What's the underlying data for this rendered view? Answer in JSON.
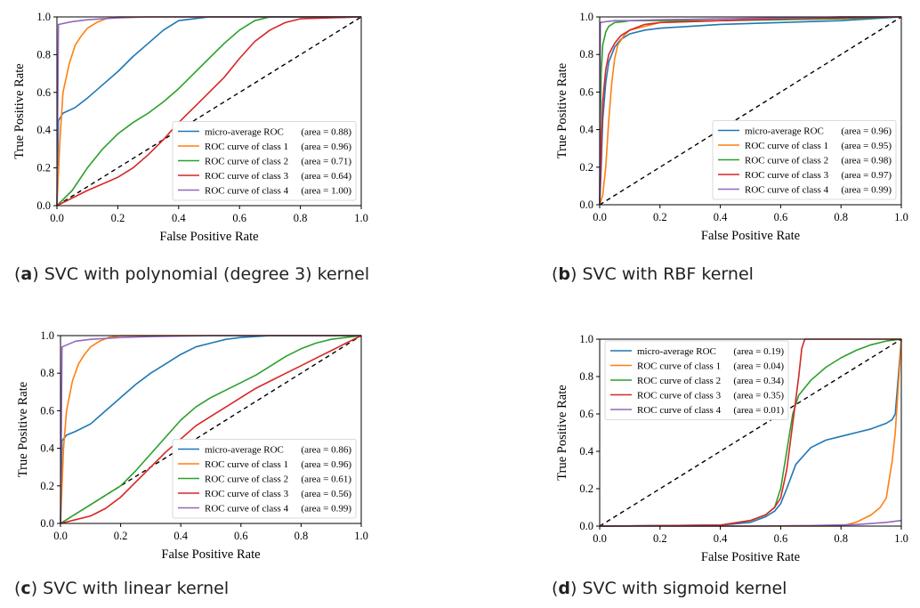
{
  "colors": {
    "micro": "#1f77b4",
    "class1": "#ff7f0e",
    "class2": "#2ca02c",
    "class3": "#d62728",
    "class4": "#9467bd",
    "diagonal": "#000000"
  },
  "chart_data": [
    {
      "type": "line",
      "caption_letter": "a",
      "caption_text": "SVC with polynomial (degree 3) kernel",
      "xlabel": "False Positive Rate",
      "ylabel": "True Positive Rate",
      "xlim": [
        0,
        1
      ],
      "ylim": [
        0,
        1
      ],
      "ticks": [
        "0.0",
        "0.2",
        "0.4",
        "0.6",
        "0.8",
        "1.0"
      ],
      "legend_position": "lower-right",
      "series": [
        {
          "name": "micro-average ROC",
          "area": "(area = 0.88)",
          "x": [
            0,
            0.005,
            0.02,
            0.06,
            0.1,
            0.15,
            0.2,
            0.25,
            0.3,
            0.35,
            0.4,
            0.45,
            0.5,
            0.6,
            1.0
          ],
          "y": [
            0,
            0.45,
            0.49,
            0.52,
            0.57,
            0.64,
            0.71,
            0.79,
            0.86,
            0.93,
            0.98,
            0.99,
            1.0,
            1.0,
            1.0
          ]
        },
        {
          "name": "ROC curve of class 1",
          "area": "(area = 0.96)",
          "x": [
            0,
            0.01,
            0.02,
            0.04,
            0.06,
            0.08,
            0.1,
            0.13,
            0.16,
            0.2,
            0.3,
            1.0
          ],
          "y": [
            0,
            0.35,
            0.6,
            0.75,
            0.85,
            0.9,
            0.94,
            0.97,
            0.99,
            1.0,
            1.0,
            1.0
          ]
        },
        {
          "name": "ROC curve of class 2",
          "area": "(area = 0.71)",
          "x": [
            0,
            0.05,
            0.1,
            0.15,
            0.2,
            0.25,
            0.3,
            0.35,
            0.4,
            0.45,
            0.5,
            0.55,
            0.6,
            0.65,
            0.7,
            1.0
          ],
          "y": [
            0,
            0.08,
            0.2,
            0.3,
            0.38,
            0.44,
            0.49,
            0.55,
            0.62,
            0.7,
            0.78,
            0.86,
            0.93,
            0.98,
            1.0,
            1.0
          ]
        },
        {
          "name": "ROC curve of class 3",
          "area": "(area = 0.64)",
          "x": [
            0,
            0.1,
            0.2,
            0.25,
            0.3,
            0.35,
            0.4,
            0.45,
            0.5,
            0.55,
            0.6,
            0.65,
            0.7,
            0.75,
            0.8,
            1.0
          ],
          "y": [
            0,
            0.08,
            0.15,
            0.2,
            0.27,
            0.35,
            0.44,
            0.52,
            0.6,
            0.68,
            0.78,
            0.87,
            0.93,
            0.97,
            0.99,
            1.0
          ]
        },
        {
          "name": "ROC curve of class 4",
          "area": "(area = 1.00)",
          "x": [
            0,
            0.005,
            0.05,
            0.1,
            0.15,
            0.2,
            0.3,
            1.0
          ],
          "y": [
            0,
            0.96,
            0.975,
            0.985,
            0.99,
            0.995,
            1.0,
            1.0
          ]
        }
      ]
    },
    {
      "type": "line",
      "caption_letter": "b",
      "caption_text": "SVC with RBF kernel",
      "xlabel": "False Positive Rate",
      "ylabel": "True Positive Rate",
      "xlim": [
        0,
        1
      ],
      "ylim": [
        0,
        1
      ],
      "ticks": [
        "0.0",
        "0.2",
        "0.4",
        "0.6",
        "0.8",
        "1.0"
      ],
      "legend_position": "lower-right",
      "series": [
        {
          "name": "micro-average ROC",
          "area": "(area = 0.96)",
          "x": [
            0,
            0.005,
            0.01,
            0.02,
            0.03,
            0.05,
            0.07,
            0.1,
            0.15,
            0.2,
            0.4,
            0.6,
            0.8,
            1.0
          ],
          "y": [
            0,
            0.2,
            0.45,
            0.65,
            0.76,
            0.84,
            0.88,
            0.91,
            0.93,
            0.94,
            0.96,
            0.97,
            0.98,
            1.0
          ]
        },
        {
          "name": "ROC curve of class 1",
          "area": "(area = 0.95)",
          "x": [
            0,
            0.01,
            0.02,
            0.03,
            0.04,
            0.05,
            0.06,
            0.08,
            0.1,
            0.15,
            0.2,
            0.4,
            0.6,
            0.8,
            1.0
          ],
          "y": [
            0,
            0.05,
            0.2,
            0.45,
            0.65,
            0.78,
            0.85,
            0.9,
            0.93,
            0.95,
            0.97,
            0.98,
            0.99,
            1.0,
            1.0
          ]
        },
        {
          "name": "ROC curve of class 2",
          "area": "(area = 0.98)",
          "x": [
            0,
            0.002,
            0.005,
            0.01,
            0.02,
            0.03,
            0.05,
            0.08,
            0.1,
            0.2,
            0.4,
            0.6,
            0.8,
            1.0
          ],
          "y": [
            0,
            0.4,
            0.7,
            0.85,
            0.92,
            0.95,
            0.97,
            0.975,
            0.98,
            0.98,
            0.98,
            0.985,
            0.99,
            1.0
          ]
        },
        {
          "name": "ROC curve of class 3",
          "area": "(area = 0.97)",
          "x": [
            0,
            0.005,
            0.01,
            0.02,
            0.03,
            0.05,
            0.07,
            0.1,
            0.15,
            0.2,
            0.4,
            0.6,
            0.8,
            1.0
          ],
          "y": [
            0,
            0.3,
            0.55,
            0.72,
            0.8,
            0.86,
            0.9,
            0.93,
            0.96,
            0.97,
            0.98,
            0.99,
            0.995,
            1.0
          ]
        },
        {
          "name": "ROC curve of class 4",
          "area": "(area = 0.99)",
          "x": [
            0,
            0.002,
            0.02,
            0.05,
            0.1,
            0.2,
            0.4,
            0.6,
            0.8,
            1.0
          ],
          "y": [
            0,
            0.97,
            0.975,
            0.98,
            0.98,
            0.985,
            0.99,
            0.995,
            1.0,
            1.0
          ]
        }
      ]
    },
    {
      "type": "line",
      "caption_letter": "c",
      "caption_text": "SVC with linear kernel",
      "xlabel": "False Positive Rate",
      "ylabel": "True Positive Rate",
      "xlim": [
        0,
        1
      ],
      "ylim": [
        0,
        1
      ],
      "ticks": [
        "0.0",
        "0.2",
        "0.4",
        "0.6",
        "0.8",
        "1.0"
      ],
      "legend_position": "lower-right",
      "series": [
        {
          "name": "micro-average ROC",
          "area": "(area = 0.86)",
          "x": [
            0,
            0.005,
            0.02,
            0.05,
            0.1,
            0.15,
            0.2,
            0.25,
            0.3,
            0.35,
            0.4,
            0.45,
            0.5,
            0.55,
            0.6,
            0.7,
            0.8,
            1.0
          ],
          "y": [
            0,
            0.44,
            0.47,
            0.49,
            0.53,
            0.6,
            0.67,
            0.74,
            0.8,
            0.85,
            0.9,
            0.94,
            0.96,
            0.98,
            0.99,
            1.0,
            1.0,
            1.0
          ]
        },
        {
          "name": "ROC curve of class 1",
          "area": "(area = 0.96)",
          "x": [
            0,
            0.01,
            0.02,
            0.04,
            0.06,
            0.08,
            0.1,
            0.13,
            0.16,
            0.2,
            0.3,
            1.0
          ],
          "y": [
            0,
            0.4,
            0.6,
            0.76,
            0.85,
            0.9,
            0.94,
            0.97,
            0.99,
            1.0,
            1.0,
            1.0
          ]
        },
        {
          "name": "ROC curve of class 2",
          "area": "(area = 0.61)",
          "x": [
            0,
            0.05,
            0.1,
            0.15,
            0.2,
            0.25,
            0.3,
            0.35,
            0.4,
            0.45,
            0.5,
            0.55,
            0.6,
            0.65,
            0.7,
            0.75,
            0.8,
            0.85,
            0.9,
            0.95,
            1.0
          ],
          "y": [
            0,
            0.05,
            0.1,
            0.15,
            0.2,
            0.28,
            0.37,
            0.46,
            0.55,
            0.62,
            0.67,
            0.71,
            0.75,
            0.79,
            0.84,
            0.89,
            0.93,
            0.96,
            0.98,
            0.99,
            1.0
          ]
        },
        {
          "name": "ROC curve of class 3",
          "area": "(area = 0.56)",
          "x": [
            0,
            0.05,
            0.1,
            0.15,
            0.2,
            0.25,
            0.3,
            0.35,
            0.4,
            0.45,
            0.5,
            0.55,
            0.6,
            0.65,
            0.7,
            0.75,
            0.8,
            0.85,
            0.9,
            0.95,
            1.0
          ],
          "y": [
            0,
            0.02,
            0.04,
            0.08,
            0.14,
            0.22,
            0.3,
            0.38,
            0.45,
            0.52,
            0.57,
            0.62,
            0.67,
            0.72,
            0.76,
            0.8,
            0.84,
            0.88,
            0.92,
            0.96,
            1.0
          ]
        },
        {
          "name": "ROC curve of class 4",
          "area": "(area = 0.99)",
          "x": [
            0,
            0.005,
            0.05,
            0.1,
            0.15,
            0.2,
            0.3,
            0.5,
            1.0
          ],
          "y": [
            0,
            0.94,
            0.97,
            0.98,
            0.985,
            0.99,
            0.995,
            1.0,
            1.0
          ]
        }
      ]
    },
    {
      "type": "line",
      "caption_letter": "d",
      "caption_text": "SVC with sigmoid kernel",
      "xlabel": "False Positive Rate",
      "ylabel": "True Positive Rate",
      "xlim": [
        0,
        1
      ],
      "ylim": [
        0,
        1
      ],
      "ticks": [
        "0.0",
        "0.2",
        "0.4",
        "0.6",
        "0.8",
        "1.0"
      ],
      "legend_position": "upper-left",
      "series": [
        {
          "name": "micro-average ROC",
          "area": "(area = 0.19)",
          "x": [
            0,
            0.4,
            0.5,
            0.55,
            0.58,
            0.6,
            0.62,
            0.65,
            0.7,
            0.75,
            0.8,
            0.85,
            0.9,
            0.95,
            0.97,
            0.98,
            0.99,
            1.0
          ],
          "y": [
            0,
            0.005,
            0.02,
            0.05,
            0.08,
            0.12,
            0.2,
            0.33,
            0.42,
            0.46,
            0.48,
            0.5,
            0.52,
            0.55,
            0.57,
            0.6,
            0.8,
            1.0
          ]
        },
        {
          "name": "ROC curve of class 1",
          "area": "(area = 0.04)",
          "x": [
            0,
            0.8,
            0.85,
            0.9,
            0.93,
            0.95,
            0.96,
            0.97,
            0.98,
            0.99,
            1.0
          ],
          "y": [
            0,
            0.0,
            0.02,
            0.06,
            0.1,
            0.15,
            0.25,
            0.35,
            0.5,
            0.75,
            1.0
          ]
        },
        {
          "name": "ROC curve of class 2",
          "area": "(area = 0.34)",
          "x": [
            0,
            0.4,
            0.5,
            0.55,
            0.58,
            0.6,
            0.62,
            0.64,
            0.66,
            0.7,
            0.75,
            0.8,
            0.85,
            0.9,
            0.95,
            1.0
          ],
          "y": [
            0,
            0.005,
            0.03,
            0.06,
            0.1,
            0.2,
            0.4,
            0.6,
            0.7,
            0.78,
            0.85,
            0.9,
            0.94,
            0.97,
            0.99,
            1.0
          ]
        },
        {
          "name": "ROC curve of class 3",
          "area": "(area = 0.35)",
          "x": [
            0,
            0.4,
            0.5,
            0.55,
            0.58,
            0.6,
            0.62,
            0.64,
            0.66,
            0.67,
            0.68,
            0.7,
            0.8,
            1.0
          ],
          "y": [
            0,
            0.005,
            0.03,
            0.06,
            0.1,
            0.15,
            0.3,
            0.55,
            0.8,
            0.95,
            1.0,
            1.0,
            1.0,
            1.0
          ]
        },
        {
          "name": "ROC curve of class 4",
          "area": "(area = 0.01)",
          "x": [
            0,
            0.5,
            0.7,
            0.85,
            0.95,
            1.0
          ],
          "y": [
            0,
            0.0,
            0.003,
            0.008,
            0.02,
            0.03
          ]
        }
      ]
    }
  ]
}
